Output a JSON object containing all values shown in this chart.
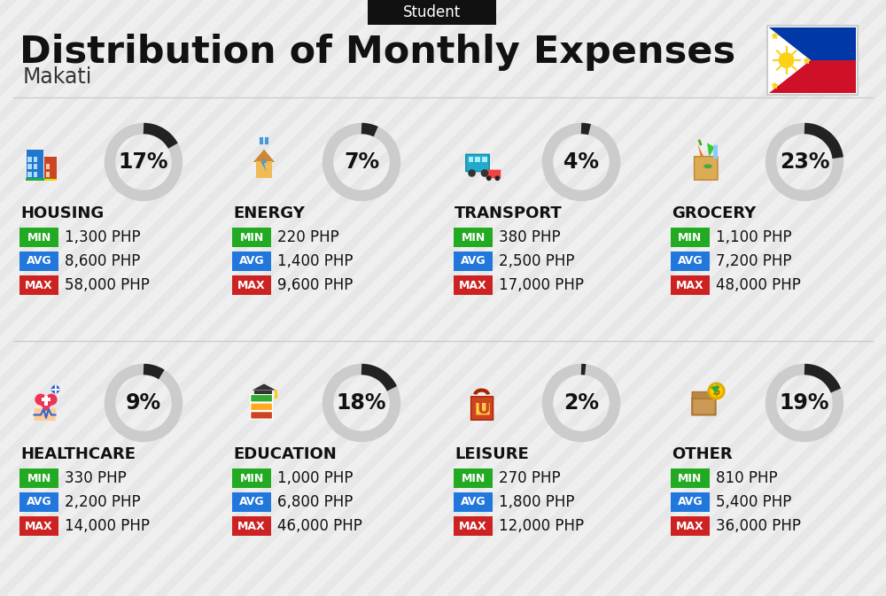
{
  "title": "Distribution of Monthly Expenses",
  "subtitle": "Student",
  "location": "Makati",
  "background_color": "#efefef",
  "header_bg": "#111111",
  "header_text_color": "#ffffff",
  "title_color": "#111111",
  "location_color": "#333333",
  "categories": [
    {
      "name": "HOUSING",
      "pct": 17,
      "min": "1,300 PHP",
      "avg": "8,600 PHP",
      "max": "58,000 PHP",
      "row": 0,
      "col": 0
    },
    {
      "name": "ENERGY",
      "pct": 7,
      "min": "220 PHP",
      "avg": "1,400 PHP",
      "max": "9,600 PHP",
      "row": 0,
      "col": 1
    },
    {
      "name": "TRANSPORT",
      "pct": 4,
      "min": "380 PHP",
      "avg": "2,500 PHP",
      "max": "17,000 PHP",
      "row": 0,
      "col": 2
    },
    {
      "name": "GROCERY",
      "pct": 23,
      "min": "1,100 PHP",
      "avg": "7,200 PHP",
      "max": "48,000 PHP",
      "row": 0,
      "col": 3
    },
    {
      "name": "HEALTHCARE",
      "pct": 9,
      "min": "330 PHP",
      "avg": "2,200 PHP",
      "max": "14,000 PHP",
      "row": 1,
      "col": 0
    },
    {
      "name": "EDUCATION",
      "pct": 18,
      "min": "1,000 PHP",
      "avg": "6,800 PHP",
      "max": "46,000 PHP",
      "row": 1,
      "col": 1
    },
    {
      "name": "LEISURE",
      "pct": 2,
      "min": "270 PHP",
      "avg": "1,800 PHP",
      "max": "12,000 PHP",
      "row": 1,
      "col": 2
    },
    {
      "name": "OTHER",
      "pct": 19,
      "min": "810 PHP",
      "avg": "5,400 PHP",
      "max": "36,000 PHP",
      "row": 1,
      "col": 3
    }
  ],
  "min_color": "#22aa22",
  "avg_color": "#2277dd",
  "max_color": "#cc2222",
  "label_text_color": "#ffffff",
  "arc_dark": "#222222",
  "arc_light": "#cccccc",
  "pct_fontsize": 17,
  "value_fontsize": 12,
  "cat_fontsize": 13,
  "badge_fontsize": 9
}
